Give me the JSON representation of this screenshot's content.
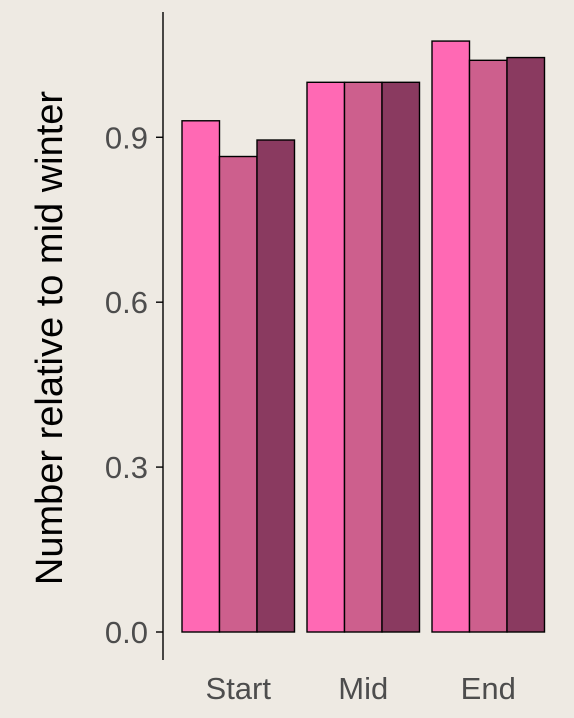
{
  "chart_data": {
    "type": "bar",
    "title": "",
    "xlabel": "",
    "ylabel": "Number relative to mid winter",
    "categories": [
      "Start",
      "Mid",
      "End"
    ],
    "y_ticks": [
      "0.0",
      "0.3",
      "0.6",
      "0.9"
    ],
    "ylim": [
      -0.05,
      1.13
    ],
    "grid": false,
    "legend": "none",
    "series": [
      {
        "values": [
          0.93,
          1.0,
          1.075
        ],
        "color": "#FF69B4"
      },
      {
        "values": [
          0.865,
          1.0,
          1.04
        ],
        "color": "#CD5F8D"
      },
      {
        "values": [
          0.895,
          1.0,
          1.045
        ],
        "color": "#8A3A60"
      }
    ]
  }
}
